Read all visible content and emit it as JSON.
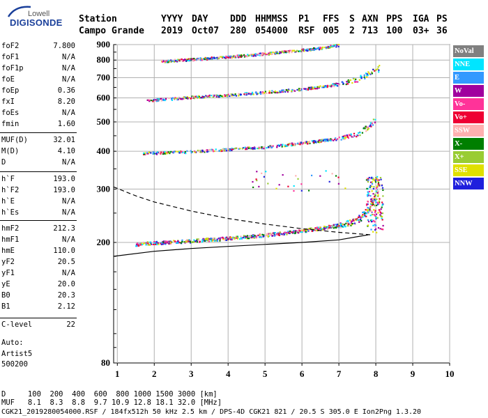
{
  "logo": {
    "line1": "Lowell",
    "line2": "DIGISONDE"
  },
  "header": {
    "cols": [
      {
        "label": "Station",
        "value": "Campo Grande"
      },
      {
        "label": "YYYY",
        "value": "2019"
      },
      {
        "label": "DAY",
        "value": "Oct07"
      },
      {
        "label": "DDD",
        "value": "280"
      },
      {
        "label": "HHMMSS",
        "value": "054000"
      },
      {
        "label": "P1",
        "value": "RSF"
      },
      {
        "label": "FFS",
        "value": "005"
      },
      {
        "label": "S",
        "value": "2"
      },
      {
        "label": "AXN",
        "value": "713"
      },
      {
        "label": "PPS",
        "value": "100"
      },
      {
        "label": "IGA",
        "value": "03+"
      },
      {
        "label": "PS",
        "value": "36"
      }
    ]
  },
  "params": {
    "group1": [
      {
        "name": "foF2",
        "value": "7.800"
      },
      {
        "name": "foF1",
        "value": "N/A"
      },
      {
        "name": "foF1p",
        "value": "N/A"
      },
      {
        "name": "foE",
        "value": "N/A"
      },
      {
        "name": "foEp",
        "value": "0.36"
      },
      {
        "name": "fxI",
        "value": "8.20"
      },
      {
        "name": "foEs",
        "value": "N/A"
      },
      {
        "name": "fmin",
        "value": "1.60"
      }
    ],
    "group2": [
      {
        "name": "MUF(D)",
        "value": "32.01"
      },
      {
        "name": "M(D)",
        "value": "4.10"
      },
      {
        "name": "D",
        "value": "N/A"
      }
    ],
    "group3": [
      {
        "name": "h`F",
        "value": "193.0"
      },
      {
        "name": "h`F2",
        "value": "193.0"
      },
      {
        "name": "h`E",
        "value": "N/A"
      },
      {
        "name": "h`Es",
        "value": "N/A"
      }
    ],
    "group4": [
      {
        "name": "hmF2",
        "value": "212.3"
      },
      {
        "name": "hmF1",
        "value": "N/A"
      },
      {
        "name": "hmE",
        "value": "110.0"
      },
      {
        "name": "yF2",
        "value": "20.5"
      },
      {
        "name": "yF1",
        "value": "N/A"
      },
      {
        "name": "yE",
        "value": "20.0"
      },
      {
        "name": "B0",
        "value": "20.3"
      },
      {
        "name": "B1",
        "value": "2.12"
      }
    ],
    "clevel": {
      "name": "C-level",
      "value": "22"
    }
  },
  "auto": {
    "line1": "Auto:",
    "line2": "Artist5",
    "line3": "500200"
  },
  "legend": [
    {
      "label": "NoVal",
      "bg": "#808080",
      "fg": "#ffffff"
    },
    {
      "label": "NNE",
      "bg": "#00e5ff",
      "fg": "#ffffff"
    },
    {
      "label": "E",
      "bg": "#3399ff",
      "fg": "#ffffff"
    },
    {
      "label": "W",
      "bg": "#a0009e",
      "fg": "#ffffff"
    },
    {
      "label": "Vo-",
      "bg": "#ff3399",
      "fg": "#ffffff"
    },
    {
      "label": "Vo+",
      "bg": "#ee0033",
      "fg": "#ffffff"
    },
    {
      "label": "SSW",
      "bg": "#ffb0b0",
      "fg": "#ffffff"
    },
    {
      "label": "X-",
      "bg": "#007f00",
      "fg": "#ffffff"
    },
    {
      "label": "X+",
      "bg": "#99cc33",
      "fg": "#ffffff"
    },
    {
      "label": "SSE",
      "bg": "#e0e000",
      "fg": "#ffffff"
    },
    {
      "label": "NNW",
      "bg": "#1f1fdd",
      "fg": "#ffffff"
    }
  ],
  "bottom": {
    "d_row": "D     100  200  400  600  800 1000 1500 3000 [km]",
    "muf_row": "MUF   8.1  8.3  8.8  9.7 10.9 12.8 18.1 32.0 [MHz]",
    "footer": "CGK21_2019280054000.RSF / 184fx512h 50 kHz 2.5 km / DPS-4D CGK21 821 / 20.5 S 305.0 E Ion2Png 1.3.20"
  },
  "chart_data": {
    "type": "scatter",
    "xlim": [
      0.9,
      10
    ],
    "ylim": [
      80,
      900
    ],
    "x_ticks": [
      1,
      2,
      3,
      4,
      5,
      6,
      7,
      8,
      9,
      10
    ],
    "y_ticks": [
      80,
      200,
      300,
      400,
      500,
      600,
      700,
      800,
      900
    ],
    "y_scale": "log",
    "grid": true,
    "traces": [
      {
        "name": "F-layer echo (1st hop)",
        "points": [
          [
            1.5,
            197
          ],
          [
            2,
            199
          ],
          [
            3,
            202
          ],
          [
            4,
            206
          ],
          [
            5,
            211
          ],
          [
            6,
            218
          ],
          [
            7,
            227
          ],
          [
            7.5,
            236
          ],
          [
            7.8,
            255
          ],
          [
            8,
            285
          ],
          [
            8.1,
            320
          ]
        ]
      },
      {
        "name": "2nd hop",
        "points": [
          [
            1.7,
            393
          ],
          [
            2.5,
            396
          ],
          [
            3,
            398
          ],
          [
            4,
            405
          ],
          [
            5,
            412
          ],
          [
            6,
            425
          ],
          [
            7,
            440
          ],
          [
            7.5,
            455
          ],
          [
            7.8,
            480
          ],
          [
            8,
            510
          ]
        ]
      },
      {
        "name": "3rd hop",
        "points": [
          [
            1.8,
            588
          ],
          [
            2.5,
            595
          ],
          [
            3,
            602
          ],
          [
            4,
            612
          ],
          [
            5,
            625
          ],
          [
            6,
            640
          ],
          [
            7,
            665
          ],
          [
            7.5,
            690
          ],
          [
            7.8,
            720
          ],
          [
            8.1,
            750
          ]
        ]
      },
      {
        "name": "4th hop",
        "points": [
          [
            2.2,
            792
          ],
          [
            3,
            802
          ],
          [
            4,
            818
          ],
          [
            5,
            838
          ],
          [
            6,
            862
          ],
          [
            6.5,
            875
          ],
          [
            7,
            895
          ]
        ]
      }
    ],
    "curves": [
      {
        "name": "MUF dashed",
        "style": "dashed",
        "points": [
          [
            0.9,
            305
          ],
          [
            1.5,
            285
          ],
          [
            2,
            272
          ],
          [
            3,
            254
          ],
          [
            4,
            240
          ],
          [
            5,
            230
          ],
          [
            6,
            222
          ],
          [
            7,
            216
          ],
          [
            7.85,
            212
          ]
        ]
      },
      {
        "name": "profile solid",
        "style": "solid",
        "points": [
          [
            0.9,
            180
          ],
          [
            2,
            187
          ],
          [
            3,
            191
          ],
          [
            4,
            194
          ],
          [
            5,
            197
          ],
          [
            6,
            200
          ],
          [
            7,
            204
          ],
          [
            7.8,
            212
          ]
        ]
      }
    ]
  }
}
